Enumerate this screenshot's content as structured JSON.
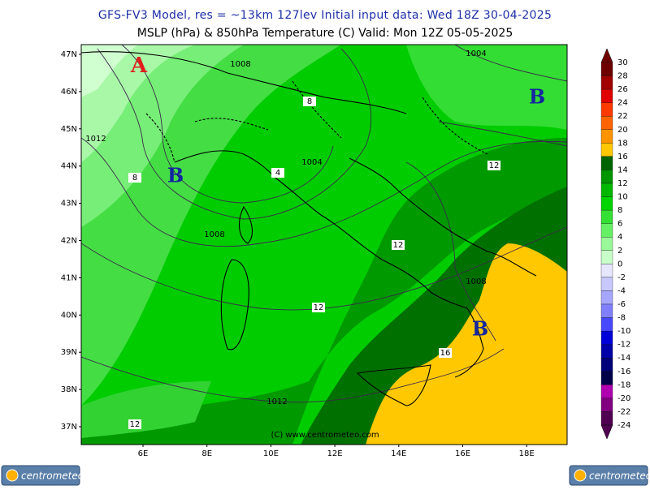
{
  "header": {
    "line1": "GFS-FV3 Model, res = ~13km 127lev   Initial input data: Wed 18Z 30-04-2025",
    "line2": "MSLP (hPa) & 850hPa Temperature (C)  Valid: Mon 12Z 05-05-2025"
  },
  "map": {
    "lat_labels": [
      "47N",
      "46N",
      "45N",
      "44N",
      "43N",
      "42N",
      "41N",
      "40N",
      "39N",
      "38N",
      "37N"
    ],
    "lon_labels": [
      "6E",
      "8E",
      "10E",
      "12E",
      "14E",
      "16E",
      "18E"
    ],
    "pressure_centers": [
      "A",
      "B",
      "B",
      "B"
    ],
    "isobar_labels": [
      "1008",
      "1004",
      "1012",
      "1004",
      "1008",
      "1012",
      "1008"
    ],
    "temperature_labels": [
      "8",
      "8",
      "4",
      "12",
      "12",
      "12",
      "16",
      "12"
    ],
    "credit": "(C) www.centrometeo.com"
  },
  "colorbar": {
    "labels": [
      "30",
      "28",
      "26",
      "24",
      "22",
      "20",
      "18",
      "16",
      "14",
      "12",
      "10",
      "8",
      "6",
      "4",
      "2",
      "0",
      "-2",
      "-4",
      "-6",
      "-8",
      "-10",
      "-12",
      "-14",
      "-16",
      "-18",
      "-20",
      "-22",
      "-24"
    ],
    "colors": [
      "#6e0000",
      "#a00000",
      "#e00000",
      "#ff3a00",
      "#ff6400",
      "#ff9400",
      "#ffc800",
      "#006400",
      "#009600",
      "#00b800",
      "#00d400",
      "#33e033",
      "#66f066",
      "#99f899",
      "#c8ffc8",
      "#e6e6ff",
      "#c8c8ff",
      "#a6a6ff",
      "#8080ff",
      "#4848ff",
      "#0000d8",
      "#0000a8",
      "#000078",
      "#000048",
      "#b000b0",
      "#800080",
      "#500050"
    ]
  },
  "logos": [
    "centrometeo",
    "centrometeo"
  ]
}
